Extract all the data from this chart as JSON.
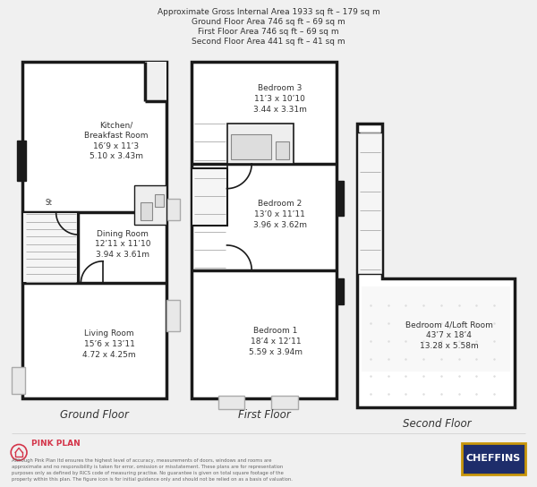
{
  "title_lines": [
    "Approximate Gross Internal Area 1933 sq ft – 179 sq m",
    "Ground Floor Area 746 sq ft – 69 sq m",
    "First Floor Area 746 sq ft – 69 sq m",
    "Second Floor Area 441 sq ft – 41 sq m"
  ],
  "floor_labels": [
    "Ground Floor",
    "First Floor",
    "Second Floor"
  ],
  "bg_color": "#f0f0f0",
  "wall_color": "#1a1a1a",
  "inner_color": "#ffffff",
  "gray_color": "#cccccc",
  "pink_color": "#d4354a",
  "brand_bg": "#1e2d6b",
  "brand_gold": "#c8960a",
  "brand_text": "CHEFFINS",
  "pink_plan_text": "PINK PLAN",
  "disclaimer": "Although Pink Plan ltd ensures the highest level of accuracy, measurements of doors, windows and rooms are\napproximate and no responsibility is taken for error, omission or misstatement. These plans are for representation\npurposes only as defined by RICS code of measuring practise. No guarantee is given on total square footage of the\nproperty within this plan. The figure icon is for initial guidance only and should not be relied on as a basis of valuation."
}
